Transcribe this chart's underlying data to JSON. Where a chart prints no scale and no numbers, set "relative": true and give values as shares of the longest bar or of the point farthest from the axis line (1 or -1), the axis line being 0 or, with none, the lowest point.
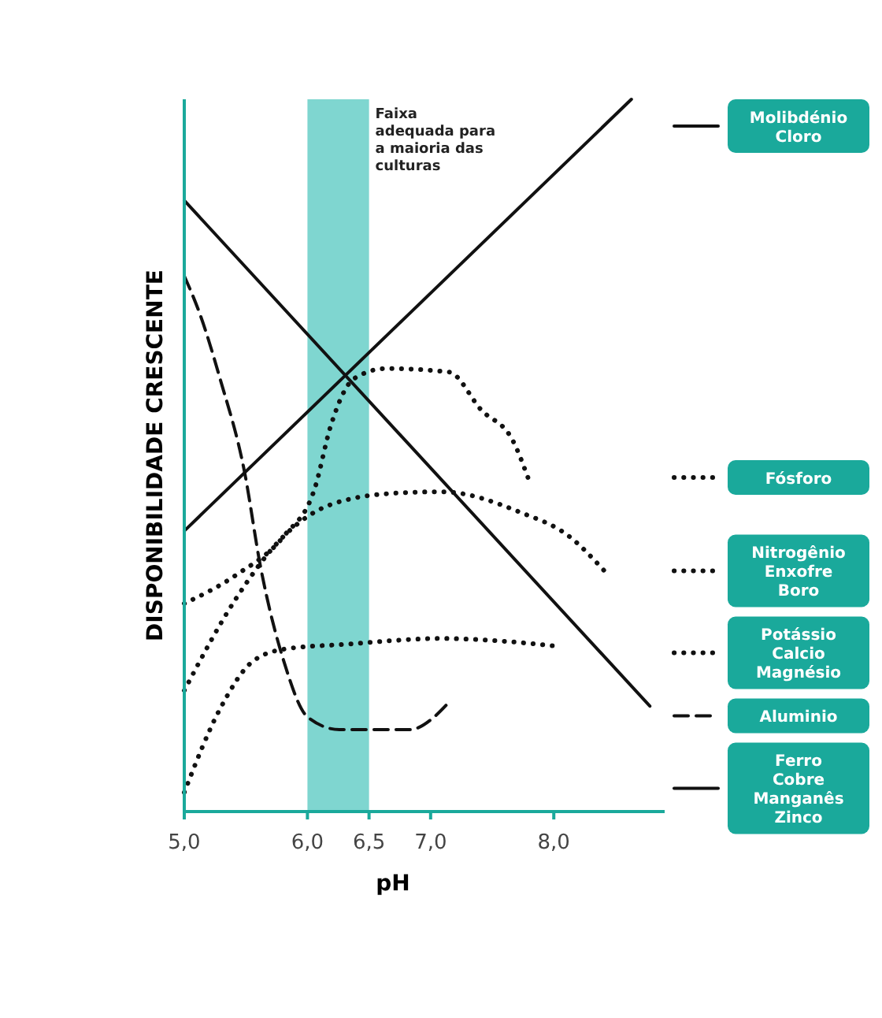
{
  "chart_data": {
    "type": "line",
    "relative": true,
    "ylabel": "DISPONIBILIDADE CRESCENTE",
    "xlabel": "pH",
    "xlim": [
      5.0,
      8.9
    ],
    "xticks": [
      {
        "value": 5.0,
        "label": "5,0"
      },
      {
        "value": 6.0,
        "label": "6,0"
      },
      {
        "value": 6.5,
        "label": "6,5"
      },
      {
        "value": 7.0,
        "label": "7,0"
      },
      {
        "value": 8.0,
        "label": "8,0"
      }
    ],
    "bands": [
      {
        "axis": "x",
        "from": 6.0,
        "to": 6.5,
        "label": "Faixa adequada para a maioria das culturas",
        "color": "#7fd6d0"
      }
    ],
    "legend": "right",
    "grid": false,
    "series": [
      {
        "name": "Molibdénio\nCloro",
        "color": "#111111",
        "line_style": "solid",
        "x": [
          5.0,
          8.63
        ],
        "values": [
          0.394,
          1.0
        ]
      },
      {
        "name": "Fósforo",
        "color": "#111111",
        "line_style": "dotted",
        "x": [
          5.0,
          5.42,
          5.81,
          6.06,
          6.19,
          6.38,
          6.64,
          7.15,
          7.41,
          7.67,
          7.79
        ],
        "values": [
          0.292,
          0.332,
          0.387,
          0.454,
          0.542,
          0.608,
          0.622,
          0.617,
          0.564,
          0.52,
          0.469
        ]
      },
      {
        "name": "Nitrogênio\nEnxofre\nBoro",
        "color": "#111111",
        "line_style": "dotted",
        "x": [
          5.0,
          5.42,
          5.81,
          6.19,
          6.71,
          7.09,
          7.73,
          8.12,
          8.41
        ],
        "values": [
          0.17,
          0.299,
          0.387,
          0.431,
          0.447,
          0.449,
          0.42,
          0.387,
          0.338
        ]
      },
      {
        "name": "Potássio\nCalcio\nMagnésio",
        "color": "#111111",
        "line_style": "dotted",
        "x": [
          5.0,
          5.29,
          5.55,
          5.81,
          6.32,
          7.09,
          7.6,
          8.04
        ],
        "values": [
          0.027,
          0.144,
          0.21,
          0.228,
          0.235,
          0.243,
          0.239,
          0.232
        ]
      },
      {
        "name": "Aluminio",
        "color": "#111111",
        "line_style": "dashed",
        "x": [
          5.0,
          5.13,
          5.29,
          5.49,
          5.62,
          5.81,
          6.0,
          6.26,
          6.83,
          7.03,
          7.13
        ],
        "values": [
          0.752,
          0.697,
          0.608,
          0.476,
          0.343,
          0.21,
          0.133,
          0.115,
          0.115,
          0.133,
          0.15
        ]
      },
      {
        "name": "Ferro\nCobre\nManganês\nZinco",
        "color": "#111111",
        "line_style": "solid",
        "x": [
          5.0,
          8.78
        ],
        "values": [
          0.858,
          0.148
        ]
      }
    ]
  }
}
